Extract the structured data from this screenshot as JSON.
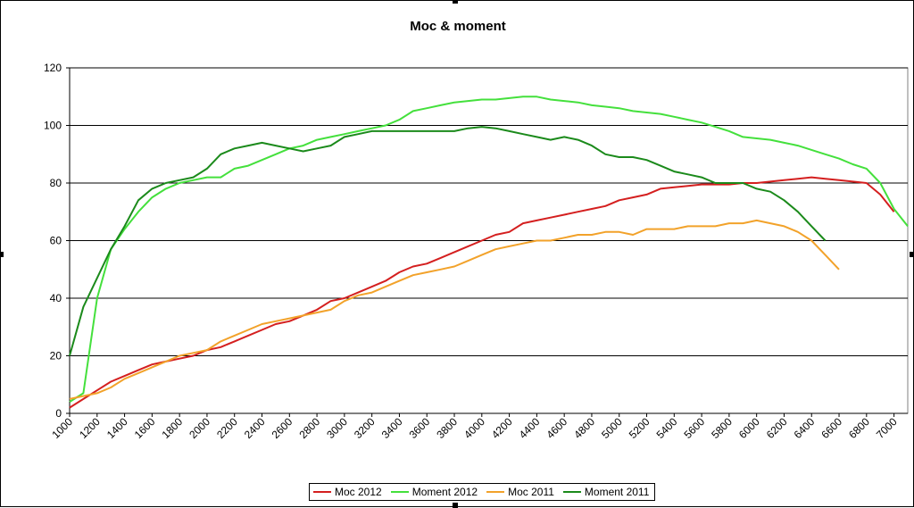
{
  "chart_data": {
    "type": "line",
    "title": "Moc & moment",
    "xlabel": "",
    "ylabel": "",
    "ylim": [
      0,
      120
    ],
    "yticks": [
      0,
      20,
      40,
      60,
      80,
      100,
      120
    ],
    "xticks": [
      1000,
      1200,
      1400,
      1600,
      1800,
      2000,
      2200,
      2400,
      2600,
      2800,
      3000,
      3200,
      3400,
      3600,
      3800,
      4000,
      4200,
      4400,
      4600,
      4800,
      5000,
      5200,
      5400,
      5600,
      5800,
      6000,
      6200,
      6400,
      6600,
      6800,
      7000
    ],
    "grid": "horizontal",
    "legend": "bottom",
    "series": [
      {
        "name": "Moc 2012",
        "color": "#d41f1f",
        "points": [
          [
            1000,
            2
          ],
          [
            1100,
            5
          ],
          [
            1200,
            8
          ],
          [
            1300,
            11
          ],
          [
            1400,
            13
          ],
          [
            1500,
            15
          ],
          [
            1600,
            17
          ],
          [
            1700,
            18
          ],
          [
            1800,
            19
          ],
          [
            1900,
            20
          ],
          [
            2000,
            22
          ],
          [
            2100,
            23
          ],
          [
            2200,
            25
          ],
          [
            2300,
            27
          ],
          [
            2400,
            29
          ],
          [
            2500,
            31
          ],
          [
            2600,
            32
          ],
          [
            2700,
            34
          ],
          [
            2800,
            36
          ],
          [
            2900,
            39
          ],
          [
            3000,
            40
          ],
          [
            3100,
            42
          ],
          [
            3200,
            44
          ],
          [
            3300,
            46
          ],
          [
            3400,
            49
          ],
          [
            3500,
            51
          ],
          [
            3600,
            52
          ],
          [
            3700,
            54
          ],
          [
            3800,
            56
          ],
          [
            3900,
            58
          ],
          [
            4000,
            60
          ],
          [
            4100,
            62
          ],
          [
            4200,
            63
          ],
          [
            4300,
            66
          ],
          [
            4400,
            67
          ],
          [
            4500,
            68
          ],
          [
            4600,
            69
          ],
          [
            4700,
            70
          ],
          [
            4800,
            71
          ],
          [
            4900,
            72
          ],
          [
            5000,
            74
          ],
          [
            5100,
            75
          ],
          [
            5200,
            76
          ],
          [
            5300,
            78
          ],
          [
            5400,
            78.5
          ],
          [
            5500,
            79
          ],
          [
            5600,
            79.5
          ],
          [
            5700,
            79.5
          ],
          [
            5800,
            79.5
          ],
          [
            5900,
            80
          ],
          [
            6000,
            80
          ],
          [
            6100,
            80.5
          ],
          [
            6200,
            81
          ],
          [
            6300,
            81.5
          ],
          [
            6400,
            82
          ],
          [
            6500,
            81.5
          ],
          [
            6600,
            81
          ],
          [
            6700,
            80.5
          ],
          [
            6800,
            80
          ],
          [
            6900,
            76
          ],
          [
            7000,
            70
          ]
        ]
      },
      {
        "name": "Moment 2012",
        "color": "#44e03c",
        "points": [
          [
            1000,
            4
          ],
          [
            1100,
            7
          ],
          [
            1200,
            40
          ],
          [
            1300,
            57
          ],
          [
            1400,
            64
          ],
          [
            1500,
            70
          ],
          [
            1600,
            75
          ],
          [
            1700,
            78
          ],
          [
            1800,
            80
          ],
          [
            1900,
            81
          ],
          [
            2000,
            82
          ],
          [
            2100,
            82
          ],
          [
            2200,
            85
          ],
          [
            2300,
            86
          ],
          [
            2400,
            88
          ],
          [
            2500,
            90
          ],
          [
            2600,
            92
          ],
          [
            2700,
            93
          ],
          [
            2800,
            95
          ],
          [
            2900,
            96
          ],
          [
            3000,
            97
          ],
          [
            3100,
            98
          ],
          [
            3200,
            99
          ],
          [
            3300,
            100
          ],
          [
            3400,
            102
          ],
          [
            3500,
            105
          ],
          [
            3600,
            106
          ],
          [
            3700,
            107
          ],
          [
            3800,
            108
          ],
          [
            3900,
            108.5
          ],
          [
            4000,
            109
          ],
          [
            4100,
            109
          ],
          [
            4200,
            109.5
          ],
          [
            4300,
            110
          ],
          [
            4400,
            110
          ],
          [
            4500,
            109
          ],
          [
            4600,
            108.5
          ],
          [
            4700,
            108
          ],
          [
            4800,
            107
          ],
          [
            4900,
            106.5
          ],
          [
            5000,
            106
          ],
          [
            5100,
            105
          ],
          [
            5200,
            104.5
          ],
          [
            5300,
            104
          ],
          [
            5400,
            103
          ],
          [
            5500,
            102
          ],
          [
            5600,
            101
          ],
          [
            5700,
            99.5
          ],
          [
            5800,
            98
          ],
          [
            5900,
            96
          ],
          [
            6000,
            95.5
          ],
          [
            6100,
            95
          ],
          [
            6200,
            94
          ],
          [
            6300,
            93
          ],
          [
            6400,
            91.5
          ],
          [
            6500,
            90
          ],
          [
            6600,
            88.5
          ],
          [
            6700,
            86.5
          ],
          [
            6800,
            85
          ],
          [
            6900,
            80
          ],
          [
            7000,
            71
          ],
          [
            7100,
            65
          ]
        ]
      },
      {
        "name": "Moc 2011",
        "color": "#f2a22a",
        "points": [
          [
            1000,
            5
          ],
          [
            1100,
            6
          ],
          [
            1200,
            7
          ],
          [
            1300,
            9
          ],
          [
            1400,
            12
          ],
          [
            1500,
            14
          ],
          [
            1600,
            16
          ],
          [
            1700,
            18
          ],
          [
            1800,
            20
          ],
          [
            1900,
            21
          ],
          [
            2000,
            22
          ],
          [
            2100,
            25
          ],
          [
            2200,
            27
          ],
          [
            2300,
            29
          ],
          [
            2400,
            31
          ],
          [
            2500,
            32
          ],
          [
            2600,
            33
          ],
          [
            2700,
            34
          ],
          [
            2800,
            35
          ],
          [
            2900,
            36
          ],
          [
            3000,
            39
          ],
          [
            3100,
            41
          ],
          [
            3200,
            42
          ],
          [
            3300,
            44
          ],
          [
            3400,
            46
          ],
          [
            3500,
            48
          ],
          [
            3600,
            49
          ],
          [
            3700,
            50
          ],
          [
            3800,
            51
          ],
          [
            3900,
            53
          ],
          [
            4000,
            55
          ],
          [
            4100,
            57
          ],
          [
            4200,
            58
          ],
          [
            4300,
            59
          ],
          [
            4400,
            60
          ],
          [
            4500,
            60
          ],
          [
            4600,
            61
          ],
          [
            4700,
            62
          ],
          [
            4800,
            62
          ],
          [
            4900,
            63
          ],
          [
            5000,
            63
          ],
          [
            5100,
            62
          ],
          [
            5200,
            64
          ],
          [
            5300,
            64
          ],
          [
            5400,
            64
          ],
          [
            5500,
            65
          ],
          [
            5600,
            65
          ],
          [
            5700,
            65
          ],
          [
            5800,
            66
          ],
          [
            5900,
            66
          ],
          [
            6000,
            67
          ],
          [
            6100,
            66
          ],
          [
            6200,
            65
          ],
          [
            6300,
            63
          ],
          [
            6400,
            60
          ],
          [
            6500,
            55
          ],
          [
            6600,
            50
          ]
        ]
      },
      {
        "name": "Moment 2011",
        "color": "#1b8a1b",
        "points": [
          [
            1000,
            20
          ],
          [
            1100,
            37
          ],
          [
            1200,
            47
          ],
          [
            1300,
            57
          ],
          [
            1400,
            65
          ],
          [
            1500,
            74
          ],
          [
            1600,
            78
          ],
          [
            1700,
            80
          ],
          [
            1800,
            81
          ],
          [
            1900,
            82
          ],
          [
            2000,
            85
          ],
          [
            2100,
            90
          ],
          [
            2200,
            92
          ],
          [
            2300,
            93
          ],
          [
            2400,
            94
          ],
          [
            2500,
            93
          ],
          [
            2600,
            92
          ],
          [
            2700,
            91
          ],
          [
            2800,
            92
          ],
          [
            2900,
            93
          ],
          [
            3000,
            96
          ],
          [
            3100,
            97
          ],
          [
            3200,
            98
          ],
          [
            3300,
            98
          ],
          [
            3400,
            98
          ],
          [
            3500,
            98
          ],
          [
            3600,
            98
          ],
          [
            3700,
            98
          ],
          [
            3800,
            98
          ],
          [
            3900,
            99
          ],
          [
            4000,
            99.5
          ],
          [
            4100,
            99
          ],
          [
            4200,
            98
          ],
          [
            4300,
            97
          ],
          [
            4400,
            96
          ],
          [
            4500,
            95
          ],
          [
            4600,
            96
          ],
          [
            4700,
            95
          ],
          [
            4800,
            93
          ],
          [
            4900,
            90
          ],
          [
            5000,
            89
          ],
          [
            5100,
            89
          ],
          [
            5200,
            88
          ],
          [
            5300,
            86
          ],
          [
            5400,
            84
          ],
          [
            5500,
            83
          ],
          [
            5600,
            82
          ],
          [
            5700,
            80
          ],
          [
            5800,
            80
          ],
          [
            5900,
            80
          ],
          [
            6000,
            78
          ],
          [
            6100,
            77
          ],
          [
            6200,
            74
          ],
          [
            6300,
            70
          ],
          [
            6400,
            65
          ],
          [
            6500,
            60
          ]
        ]
      }
    ]
  }
}
